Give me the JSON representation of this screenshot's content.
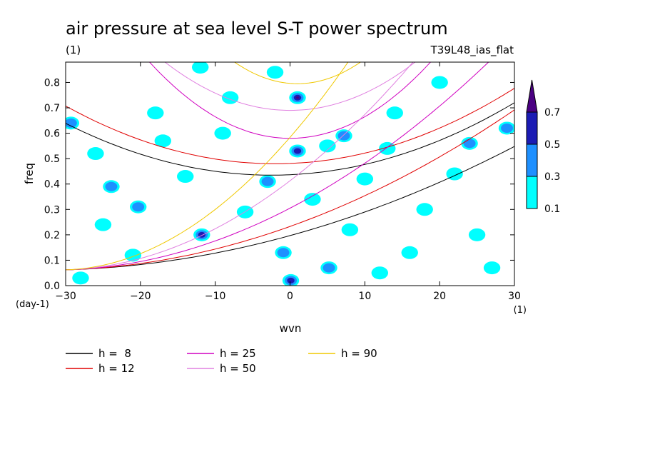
{
  "chart_data": {
    "type": "heatmap",
    "title": "air pressure at sea level S-T power spectrum",
    "unit_label": "(1)",
    "run_label": "T39L48_ias_flat",
    "xlabel": "wvn",
    "ylabel": "freq",
    "x_unit": "(1)",
    "y_unit": "(day-1)",
    "xlim": [
      -30,
      30
    ],
    "ylim": [
      0,
      0.88
    ],
    "x_ticks": [
      -30,
      -20,
      -10,
      0,
      10,
      20,
      30
    ],
    "y_ticks": [
      0.0,
      0.1,
      0.2,
      0.3,
      0.4,
      0.5,
      0.6,
      0.7,
      0.8
    ],
    "colorbar": {
      "levels": [
        "0.1",
        "0.3",
        "0.5",
        "0.7"
      ],
      "colors": [
        "#00ffff",
        "#1e90ff",
        "#1c1cb4",
        "#4b0082"
      ]
    },
    "dispersion_curves": [
      {
        "label": "h =  8",
        "h": 8,
        "color": "#000000"
      },
      {
        "label": "h = 12",
        "h": 12,
        "color": "#e00000"
      },
      {
        "label": "h = 25",
        "h": 25,
        "color": "#d000c0"
      },
      {
        "label": "h = 50",
        "h": 50,
        "color": "#e080e0"
      },
      {
        "label": "h = 90",
        "h": 90,
        "color": "#f0c800"
      }
    ],
    "patches": [
      {
        "x": -29.3,
        "y": 0.64,
        "level": 1
      },
      {
        "x": -23.9,
        "y": 0.39,
        "level": 1
      },
      {
        "x": -11.8,
        "y": 0.2,
        "level": 2
      },
      {
        "x": -20.3,
        "y": 0.31,
        "level": 1
      },
      {
        "x": 1.0,
        "y": 0.74,
        "level": 3
      },
      {
        "x": 1.0,
        "y": 0.53,
        "level": 2
      },
      {
        "x": -3.0,
        "y": 0.41,
        "level": 1
      },
      {
        "x": 7.2,
        "y": 0.59,
        "level": 1
      },
      {
        "x": 5.2,
        "y": 0.07,
        "level": 1
      },
      {
        "x": -0.9,
        "y": 0.13,
        "level": 1
      },
      {
        "x": 0.1,
        "y": 0.02,
        "level": 2
      },
      {
        "x": 29.0,
        "y": 0.62,
        "level": 1
      },
      {
        "x": 24.0,
        "y": 0.56,
        "level": 1
      },
      {
        "x": 5.0,
        "y": 0.55,
        "level": 0
      },
      {
        "x": -8.0,
        "y": 0.74,
        "level": 0
      },
      {
        "x": -18.0,
        "y": 0.68,
        "level": 0
      },
      {
        "x": 14.0,
        "y": 0.68,
        "level": 0
      },
      {
        "x": 20.0,
        "y": 0.8,
        "level": 0
      },
      {
        "x": -26.0,
        "y": 0.52,
        "level": 0
      },
      {
        "x": -14.0,
        "y": 0.43,
        "level": 0
      },
      {
        "x": 18.0,
        "y": 0.3,
        "level": 0
      },
      {
        "x": 25.0,
        "y": 0.2,
        "level": 0
      },
      {
        "x": -21.0,
        "y": 0.12,
        "level": 0
      },
      {
        "x": -6.0,
        "y": 0.29,
        "level": 0
      },
      {
        "x": 8.0,
        "y": 0.22,
        "level": 0
      },
      {
        "x": 12.0,
        "y": 0.05,
        "level": 0
      },
      {
        "x": -28.0,
        "y": 0.03,
        "level": 0
      },
      {
        "x": 27.0,
        "y": 0.07,
        "level": 0
      },
      {
        "x": -2.0,
        "y": 0.84,
        "level": 0
      },
      {
        "x": 10.0,
        "y": 0.42,
        "level": 0
      },
      {
        "x": -17.0,
        "y": 0.57,
        "level": 0
      },
      {
        "x": 22.0,
        "y": 0.44,
        "level": 0
      },
      {
        "x": -9.0,
        "y": 0.6,
        "level": 0
      },
      {
        "x": 3.0,
        "y": 0.34,
        "level": 0
      },
      {
        "x": 16.0,
        "y": 0.13,
        "level": 0
      },
      {
        "x": -25.0,
        "y": 0.24,
        "level": 0
      },
      {
        "x": 13.0,
        "y": 0.54,
        "level": 0
      },
      {
        "x": -12.0,
        "y": 0.86,
        "level": 0
      }
    ]
  }
}
